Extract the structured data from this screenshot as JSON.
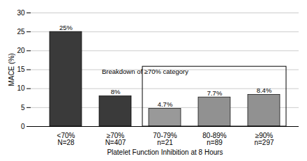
{
  "chart_data": {
    "type": "bar",
    "categories": [
      "<70%",
      "≥70%",
      "70-79%",
      "80-89%",
      "≥90%"
    ],
    "sublabels": [
      "N=28",
      "N=407",
      "n=21",
      "n=89",
      "n=297"
    ],
    "values": [
      25,
      8,
      4.7,
      7.7,
      8.4
    ],
    "value_labels": [
      "25%",
      "8%",
      "4.7%",
      "7.7%",
      "8.4%"
    ],
    "data_labels": true,
    "colors": [
      "#3a3a3a",
      "#3a3a3a",
      "#999999",
      "#919191",
      "#919191"
    ],
    "xlabel": "Platelet Function Inhibition at 8 Hours",
    "ylabel": "MACE (%)",
    "ylim": [
      0,
      30
    ],
    "yticks": [
      0,
      5,
      10,
      15,
      20,
      25,
      30
    ],
    "grid": true,
    "annotation": {
      "text": "Breakdown of ≥70% category",
      "from": "70-79%",
      "to": "≥90%",
      "top": 15.8
    }
  }
}
